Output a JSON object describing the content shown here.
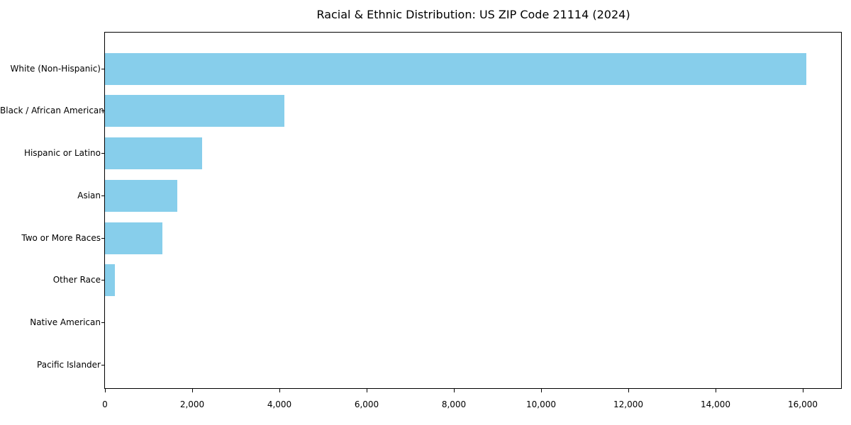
{
  "chart_data": {
    "type": "bar",
    "orientation": "horizontal",
    "title": "Racial & Ethnic Distribution: US ZIP Code 21114 (2024)",
    "xlabel": "",
    "ylabel": "",
    "categories": [
      "White (Non-Hispanic)",
      "Black / African American",
      "Hispanic or Latino",
      "Asian",
      "Two or More Races",
      "Other Race",
      "Native American",
      "Pacific Islander"
    ],
    "values": [
      16080,
      4110,
      2230,
      1660,
      1320,
      220,
      0,
      0
    ],
    "xlim": [
      0,
      16894
    ],
    "x_ticks": [
      0,
      2000,
      4000,
      6000,
      8000,
      10000,
      12000,
      14000,
      16000
    ],
    "x_tick_labels": [
      "0",
      "2,000",
      "4,000",
      "6,000",
      "8,000",
      "10,000",
      "12,000",
      "14,000",
      "16,000"
    ],
    "grid": false,
    "legend": "none",
    "bar_color": "#87CEEB",
    "background_color": "#ffffff",
    "spine_color": "#000000",
    "text_color": "#000000"
  }
}
